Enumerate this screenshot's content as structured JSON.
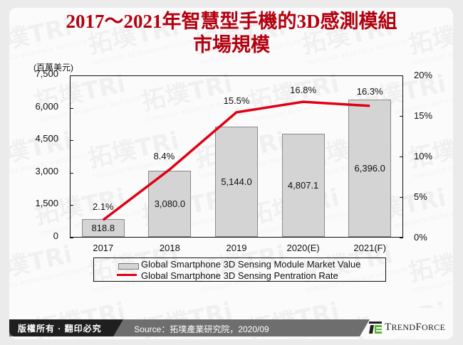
{
  "header": {
    "title_line1": "2017～2021年智慧型手機的3D感測模組",
    "title_line2": "市場規模"
  },
  "watermark": {
    "text": "拓墣TRi",
    "subtext": "TOPOLOGY RESEARCH INSTITUTE"
  },
  "axes": {
    "left_unit": "(百萬美元)",
    "left_ticks": [
      "7,500",
      "6,000",
      "4,500",
      "3,000",
      "1,500",
      "0"
    ],
    "right_ticks": [
      "20%",
      "15%",
      "10%",
      "5%",
      "0%"
    ]
  },
  "legend": {
    "bar_label": "Global Smartphone 3D Sensing Module Market Value",
    "line_label": "Global Smartphone 3D Sensing Pentration Rate"
  },
  "footer": {
    "copyright": "版權所有 · 翻印必究",
    "source": "Source：拓墣產業研究院，2020/09",
    "brand": "TrendForce"
  },
  "colors": {
    "title": "#b3000f",
    "line": "#e00014",
    "bar": "#d4d4d4",
    "brand_green": "#5cb531"
  },
  "chart_data": {
    "type": "bar",
    "title": "2017～2021年智慧型手機的3D感測模組市場規模",
    "categories": [
      "2017",
      "2018",
      "2019",
      "2020(E)",
      "2021(F)"
    ],
    "series": [
      {
        "name": "Global Smartphone 3D Sensing Module Market Value",
        "type": "bar",
        "axis": "left",
        "values": [
          818.8,
          3080.0,
          5144.0,
          4807.1,
          6396.0
        ],
        "labels": [
          "818.8",
          "3,080.0",
          "5,144.0",
          "4,807.1",
          "6,396.0"
        ]
      },
      {
        "name": "Global Smartphone 3D Sensing Pentration Rate",
        "type": "line",
        "axis": "right",
        "values": [
          2.1,
          8.4,
          15.5,
          16.8,
          16.3
        ],
        "labels": [
          "2.1%",
          "8.4%",
          "15.5%",
          "16.8%",
          "16.3%"
        ]
      }
    ],
    "ylabel": "(百萬美元)",
    "ylim": [
      0,
      7500
    ],
    "y2lim": [
      0,
      20
    ],
    "y2unit": "%",
    "grid": false,
    "legend_position": "bottom"
  }
}
